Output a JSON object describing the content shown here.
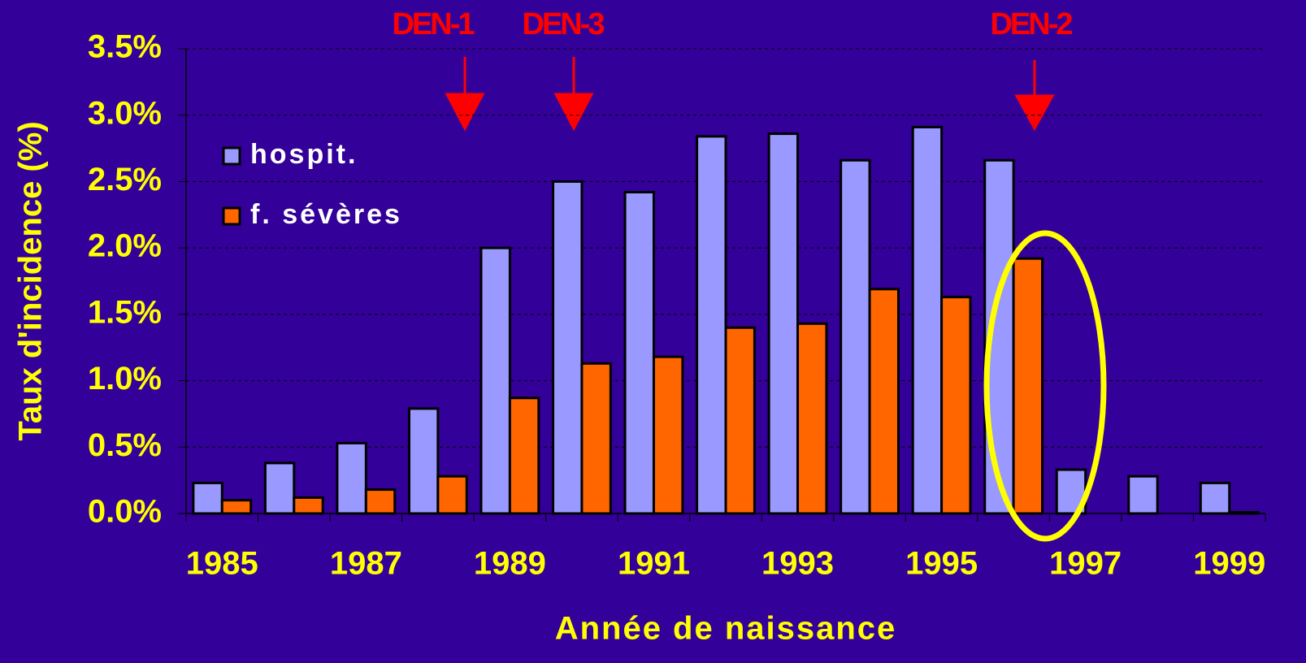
{
  "chart_data": {
    "type": "bar",
    "x_label": "Année de naissance",
    "y_label": "Taux d'incidence (%)",
    "annotations": [
      "DEN-1",
      "DEN-3",
      "DEN-2"
    ],
    "categories": [
      "1985",
      null,
      "1987",
      null,
      "1989",
      null,
      "1991",
      null,
      "1993",
      null,
      "1995",
      null,
      "1997",
      null,
      "1999"
    ],
    "series": [
      {
        "name": "hospit.",
        "color": "#9999ff",
        "values": [
          0.23,
          0.38,
          0.53,
          0.79,
          2.0,
          2.5,
          2.42,
          2.84,
          2.86,
          2.66,
          2.91,
          2.66,
          0.33,
          0.28,
          0.23
        ]
      },
      {
        "name": "f. sévères",
        "color": "#ff6600",
        "values": [
          0.1,
          0.12,
          0.18,
          0.28,
          0.87,
          1.13,
          1.18,
          1.4,
          1.43,
          1.69,
          1.63,
          1.92,
          0,
          0,
          0.01
        ]
      }
    ],
    "ylim": [
      0,
      3.5
    ],
    "yticks": [
      {
        "value": 0,
        "label": "0.0%"
      },
      {
        "value": 0.5,
        "label": "0.5%"
      },
      {
        "value": 1,
        "label": "1.0%"
      },
      {
        "value": 1.5,
        "label": "1.5%"
      },
      {
        "value": 2,
        "label": "2.0%"
      },
      {
        "value": 2.5,
        "label": "2.5%"
      },
      {
        "value": 3,
        "label": "3.0%"
      },
      {
        "value": 3.5,
        "label": "3.5%"
      }
    ],
    "grid": true,
    "legend": "upper left"
  }
}
